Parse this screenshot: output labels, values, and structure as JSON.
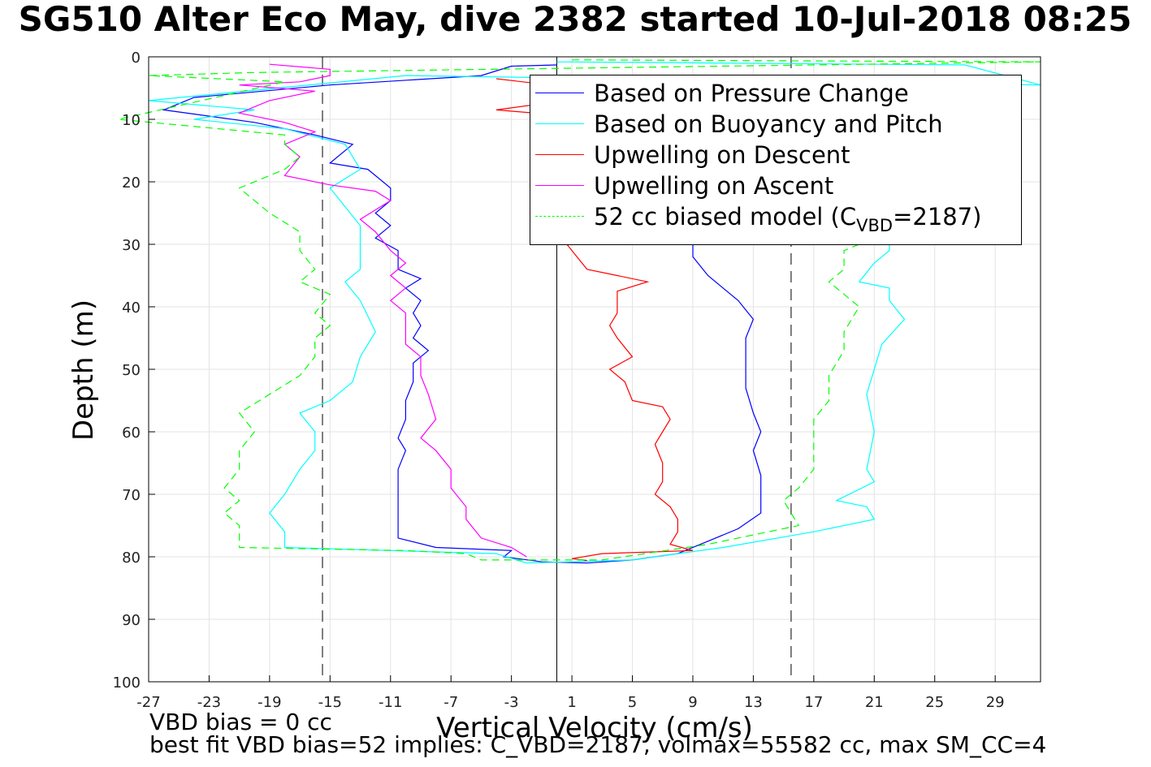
{
  "chart_data": {
    "type": "line",
    "title": "SG510 Alter Eco May, dive 2382 started 10-Jul-2018 08:25",
    "xlabel": "Vertical Velocity (cm/s)",
    "ylabel": "Depth (m)",
    "xlim": [
      -27,
      32
    ],
    "ylim": [
      0,
      100
    ],
    "y_reversed": true,
    "xticks": [
      -27,
      -23,
      -19,
      -15,
      -11,
      -7,
      -3,
      1,
      5,
      9,
      13,
      17,
      21,
      25,
      29
    ],
    "yticks": [
      0,
      10,
      20,
      30,
      40,
      50,
      60,
      70,
      80,
      90,
      100
    ],
    "grid": true,
    "reference_lines": [
      {
        "style": "solid",
        "color": "#000000",
        "x": 0
      },
      {
        "style": "dashed",
        "color": "#000000",
        "x": -15.5
      },
      {
        "style": "dashed",
        "color": "#000000",
        "x": 15.5
      }
    ],
    "legend": {
      "position": "top-right",
      "entries": [
        {
          "label": "Based on Pressure Change",
          "color": "#0000ff",
          "style": "solid"
        },
        {
          "label": "Based on Buoyancy and Pitch",
          "color": "#00ffff",
          "style": "solid"
        },
        {
          "label": "Upwelling on Descent",
          "color": "#ff0000",
          "style": "solid"
        },
        {
          "label": "Upwelling on Ascent",
          "color": "#ff00ff",
          "style": "solid"
        },
        {
          "label": "52 cc biased model (C",
          "sub": "VBD",
          "suffix": "=2187)",
          "color": "#00ff00",
          "style": "dashed"
        }
      ]
    },
    "series": [
      {
        "name": "Based on Pressure Change",
        "color": "#0000ff",
        "dash": false,
        "points": [
          [
            0,
            1.3
          ],
          [
            -3,
            1.5
          ],
          [
            -5,
            3
          ],
          [
            -15,
            4.5
          ],
          [
            -24,
            6.5
          ],
          [
            -26,
            8.5
          ],
          [
            -20,
            10.5
          ],
          [
            -16,
            12.5
          ],
          [
            -13.5,
            14
          ],
          [
            -15,
            17
          ],
          [
            -12.5,
            18
          ],
          [
            -11,
            21
          ],
          [
            -11,
            23
          ],
          [
            -12,
            25
          ],
          [
            -11,
            27
          ],
          [
            -12,
            29
          ],
          [
            -10.5,
            31
          ],
          [
            -10.5,
            34
          ],
          [
            -9,
            35.5
          ],
          [
            -10,
            37
          ],
          [
            -9,
            39
          ],
          [
            -9.5,
            41
          ],
          [
            -9,
            43
          ],
          [
            -9.5,
            45
          ],
          [
            -8.5,
            47
          ],
          [
            -9.5,
            49
          ],
          [
            -9.5,
            52
          ],
          [
            -10,
            55
          ],
          [
            -10,
            58
          ],
          [
            -10.5,
            61
          ],
          [
            -10,
            63
          ],
          [
            -10.5,
            66
          ],
          [
            -10.5,
            70
          ],
          [
            -10.5,
            73
          ],
          [
            -10.5,
            77
          ],
          [
            -8,
            78.5
          ],
          [
            -3,
            79
          ],
          [
            -3.5,
            80
          ],
          [
            -1,
            80.8
          ],
          [
            2,
            81
          ],
          [
            5,
            80.5
          ],
          [
            8,
            79.5
          ],
          [
            10,
            77.5
          ],
          [
            12,
            75.5
          ],
          [
            13.5,
            73
          ],
          [
            13.5,
            70
          ],
          [
            13.5,
            67
          ],
          [
            13,
            63
          ],
          [
            13.5,
            60
          ],
          [
            13,
            57
          ],
          [
            12.5,
            53
          ],
          [
            12.5,
            49
          ],
          [
            12.5,
            45
          ],
          [
            13,
            42
          ],
          [
            12,
            39
          ],
          [
            11,
            37
          ],
          [
            10,
            35
          ],
          [
            9,
            32
          ],
          [
            9,
            30
          ]
        ]
      },
      {
        "name": "Based on Buoyancy and Pitch",
        "color": "#00ffff",
        "dash": false,
        "points": [
          [
            0,
            0.8
          ],
          [
            27,
            1.3
          ],
          [
            32,
            4.5
          ],
          [
            -10,
            3
          ],
          [
            -27,
            7
          ],
          [
            -20,
            8.5
          ],
          [
            -24,
            10
          ],
          [
            -18,
            11.5
          ],
          [
            -14,
            14
          ],
          [
            -13,
            18
          ],
          [
            -15,
            21
          ],
          [
            -14,
            24
          ],
          [
            -13,
            27
          ],
          [
            -13,
            30
          ],
          [
            -13,
            34
          ],
          [
            -14,
            36
          ],
          [
            -13,
            39
          ],
          [
            -12,
            44
          ],
          [
            -13,
            48
          ],
          [
            -13.5,
            52
          ],
          [
            -15,
            55
          ],
          [
            -17,
            57
          ],
          [
            -16,
            60
          ],
          [
            -16,
            63
          ],
          [
            -17,
            66
          ],
          [
            -18,
            70
          ],
          [
            -19,
            73
          ],
          [
            -18,
            76
          ],
          [
            -18,
            78.5
          ],
          [
            -11,
            79
          ],
          [
            -4,
            79.5
          ],
          [
            -2,
            81
          ],
          [
            5,
            80.5
          ],
          [
            11,
            78.5
          ],
          [
            17,
            76
          ],
          [
            21,
            74
          ],
          [
            20.5,
            72
          ],
          [
            18.5,
            71
          ],
          [
            21,
            68
          ],
          [
            20.5,
            66
          ],
          [
            21,
            60
          ],
          [
            20.5,
            54
          ],
          [
            21,
            50
          ],
          [
            21.5,
            46
          ],
          [
            23,
            42
          ],
          [
            22,
            39
          ],
          [
            22,
            37
          ],
          [
            20,
            36
          ],
          [
            21,
            33
          ],
          [
            22,
            31
          ],
          [
            22,
            29
          ]
        ]
      },
      {
        "name": "Upwelling on Descent",
        "color": "#ff0000",
        "dash": false,
        "points": [
          [
            -4,
            3.5
          ],
          [
            3,
            5.5
          ],
          [
            -1,
            7.5
          ],
          [
            -4,
            8.5
          ],
          [
            1,
            9.5
          ],
          [
            0,
            28
          ],
          [
            1,
            31
          ],
          [
            2,
            34
          ],
          [
            4,
            35
          ],
          [
            6,
            36
          ],
          [
            4,
            37.5
          ],
          [
            4,
            39
          ],
          [
            4,
            41
          ],
          [
            3.5,
            43
          ],
          [
            4,
            45
          ],
          [
            5,
            48
          ],
          [
            3.5,
            50
          ],
          [
            4.5,
            52
          ],
          [
            5,
            55
          ],
          [
            7,
            56
          ],
          [
            7.5,
            58
          ],
          [
            7,
            60
          ],
          [
            6.5,
            62
          ],
          [
            7,
            65
          ],
          [
            7,
            68
          ],
          [
            6.5,
            70
          ],
          [
            7.5,
            72
          ],
          [
            8,
            74
          ],
          [
            8,
            76
          ],
          [
            7.5,
            78
          ],
          [
            9,
            79
          ],
          [
            3,
            79.5
          ],
          [
            1,
            80.3
          ],
          [
            2,
            80.6
          ]
        ]
      },
      {
        "name": "Upwelling on Ascent",
        "color": "#ff00ff",
        "dash": false,
        "points": [
          [
            -19,
            1.2
          ],
          [
            -15,
            2
          ],
          [
            -15,
            3
          ],
          [
            -17,
            4
          ],
          [
            -21,
            4.5
          ],
          [
            -16,
            5.5
          ],
          [
            -19,
            7
          ],
          [
            -21,
            9
          ],
          [
            -18,
            10.5
          ],
          [
            -16,
            12
          ],
          [
            -18,
            14
          ],
          [
            -17,
            16
          ],
          [
            -18,
            19
          ],
          [
            -15,
            20.5
          ],
          [
            -12,
            21.5
          ],
          [
            -11,
            23
          ],
          [
            -13,
            26
          ],
          [
            -12,
            28
          ],
          [
            -11,
            31
          ],
          [
            -10,
            33
          ],
          [
            -11,
            35
          ],
          [
            -10,
            37
          ],
          [
            -11,
            39
          ],
          [
            -10,
            41
          ],
          [
            -10,
            44
          ],
          [
            -10,
            46
          ],
          [
            -9,
            48
          ],
          [
            -9,
            51
          ],
          [
            -8.5,
            54
          ],
          [
            -8,
            58
          ],
          [
            -9,
            61
          ],
          [
            -8,
            63
          ],
          [
            -7,
            66
          ],
          [
            -7,
            69
          ],
          [
            -6,
            72
          ],
          [
            -6,
            74
          ],
          [
            -5,
            77
          ],
          [
            -3,
            78.5
          ],
          [
            -2,
            80
          ]
        ]
      },
      {
        "name": "52 cc biased model (CVBD=2187)",
        "color": "#00ff00",
        "dash": true,
        "points": [
          [
            1,
            0.5
          ],
          [
            32,
            0.8
          ],
          [
            -20,
            2.5
          ],
          [
            -27,
            3
          ],
          [
            -18,
            4
          ],
          [
            -29,
            10
          ],
          [
            -18,
            12.5
          ],
          [
            -18,
            14
          ],
          [
            -17,
            16
          ],
          [
            -18,
            18
          ],
          [
            -21,
            21
          ],
          [
            -20,
            23
          ],
          [
            -19,
            25
          ],
          [
            -17,
            28
          ],
          [
            -17,
            31
          ],
          [
            -16,
            34
          ],
          [
            -17,
            36
          ],
          [
            -15,
            38
          ],
          [
            -16,
            41
          ],
          [
            -15,
            43
          ],
          [
            -16,
            45
          ],
          [
            -16,
            48
          ],
          [
            -17,
            51
          ],
          [
            -19,
            54
          ],
          [
            -21,
            57
          ],
          [
            -20,
            60
          ],
          [
            -21,
            63
          ],
          [
            -21,
            66
          ],
          [
            -22,
            69
          ],
          [
            -21,
            71
          ],
          [
            -22,
            73
          ],
          [
            -21,
            75
          ],
          [
            -21,
            78.5
          ],
          [
            -10,
            79
          ],
          [
            -6,
            79.5
          ],
          [
            -5,
            80.5
          ],
          [
            3,
            80.5
          ],
          [
            10,
            78
          ],
          [
            16,
            75
          ],
          [
            15,
            71
          ],
          [
            16,
            69
          ],
          [
            17,
            66
          ],
          [
            17,
            62
          ],
          [
            17,
            58
          ],
          [
            18,
            55
          ],
          [
            18,
            51
          ],
          [
            19,
            47
          ],
          [
            19,
            44
          ],
          [
            20,
            40
          ],
          [
            19,
            38
          ],
          [
            18,
            36
          ],
          [
            19,
            34
          ],
          [
            19,
            31
          ],
          [
            20,
            30
          ]
        ]
      }
    ]
  },
  "notes": {
    "line1": "VBD bias = 0 cc",
    "line2": "best fit VBD bias=52 implies: C_VBD=2187, volmax=55582 cc, max SM_CC=4"
  }
}
